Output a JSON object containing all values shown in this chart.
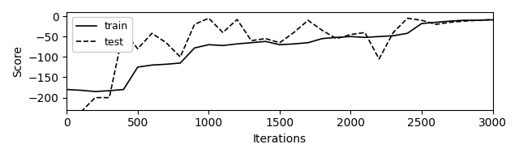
{
  "title": "",
  "xlabel": "Iterations",
  "ylabel": "Score",
  "xlim": [
    0,
    3000
  ],
  "ylim": [
    -230,
    10
  ],
  "yticks": [
    0,
    -50,
    -100,
    -150,
    -200
  ],
  "xticks": [
    0,
    500,
    1000,
    1500,
    2000,
    2500,
    3000
  ],
  "train_x": [
    0,
    100,
    200,
    300,
    400,
    500,
    600,
    700,
    800,
    900,
    1000,
    1100,
    1200,
    1300,
    1400,
    1500,
    1600,
    1700,
    1800,
    1900,
    2000,
    2100,
    2200,
    2300,
    2400,
    2500,
    2600,
    2700,
    2800,
    2900,
    3000
  ],
  "train_y": [
    -180,
    -182,
    -185,
    -183,
    -180,
    -125,
    -120,
    -118,
    -115,
    -78,
    -70,
    -72,
    -68,
    -65,
    -62,
    -70,
    -68,
    -65,
    -55,
    -52,
    -50,
    -52,
    -50,
    -48,
    -42,
    -18,
    -15,
    -12,
    -10,
    -10,
    -9
  ],
  "test_x": [
    100,
    200,
    300,
    400,
    500,
    600,
    700,
    800,
    900,
    1000,
    1100,
    1200,
    1300,
    1400,
    1500,
    1600,
    1700,
    1800,
    1900,
    2000,
    2100,
    2200,
    2300,
    2400,
    2500,
    2600,
    2700,
    2800,
    2900,
    3000
  ],
  "test_y": [
    -235,
    -200,
    -200,
    -35,
    -80,
    -42,
    -65,
    -100,
    -20,
    -5,
    -40,
    -8,
    -60,
    -55,
    -65,
    -40,
    -10,
    -35,
    -55,
    -45,
    -40,
    -105,
    -40,
    -5,
    -10,
    -20,
    -15,
    -12,
    -10,
    -8
  ],
  "train_color": "#000000",
  "test_color": "#000000",
  "legend_train": "train",
  "legend_test": "test",
  "figsize": [
    6.4,
    1.94
  ],
  "dpi": 100
}
